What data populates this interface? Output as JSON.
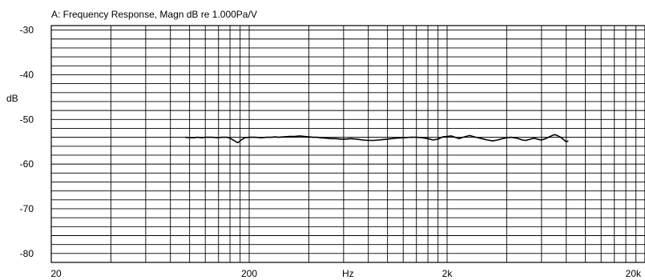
{
  "chart_data": {
    "type": "line",
    "title": "A: Frequency Response, Magn dB re 1.000Pa/V",
    "xlabel": "Hz",
    "ylabel": "dB",
    "x_scale": "log",
    "xlim": [
      20,
      20000
    ],
    "ylim": [
      -82,
      -29
    ],
    "x_tick_labels": [
      {
        "value": 20,
        "label": "20"
      },
      {
        "value": 200,
        "label": "200"
      },
      {
        "value": 2000,
        "label": "2k"
      },
      {
        "value": 20000,
        "label": "20k"
      }
    ],
    "y_tick_labels": [
      {
        "value": -30,
        "label": "-30"
      },
      {
        "value": -40,
        "label": "-40"
      },
      {
        "value": -50,
        "label": "-50"
      },
      {
        "value": -60,
        "label": "-60"
      },
      {
        "value": -70,
        "label": "-70"
      },
      {
        "value": -80,
        "label": "-80"
      }
    ],
    "grid": true,
    "line_color": "#000000",
    "series": [
      {
        "x": [
          95,
          100,
          105,
          110,
          115,
          120,
          130,
          140,
          145,
          150,
          155,
          160,
          170,
          175,
          180,
          185,
          190,
          200,
          215,
          230,
          245,
          260,
          270,
          280,
          300,
          320,
          340,
          360,
          380,
          400,
          420,
          440,
          460,
          490,
          520,
          550,
          580,
          620,
          650,
          700,
          750,
          800,
          850,
          900,
          950,
          1000,
          1050,
          1100,
          1200,
          1300,
          1400,
          1500,
          1600,
          1700,
          1800,
          1900,
          2000,
          2100,
          2200,
          2300,
          2400,
          2500,
          2600,
          2700,
          2800,
          3000,
          3200,
          3400,
          3600,
          3800,
          4000,
          4200,
          4500,
          4800,
          5000,
          5200,
          5500,
          5800,
          6000,
          6200,
          6500,
          6800,
          7000,
          7200,
          7500,
          7800,
          8000,
          8200
        ],
        "y": [
          -54.0,
          -54.1,
          -54.1,
          -54.0,
          -54.1,
          -54.0,
          -54.0,
          -54.1,
          -54.0,
          -54.0,
          -54.0,
          -54.2,
          -54.9,
          -55.2,
          -54.8,
          -54.4,
          -54.1,
          -54.0,
          -54.0,
          -54.1,
          -54.0,
          -54.0,
          -53.9,
          -54.0,
          -53.9,
          -53.8,
          -53.8,
          -53.7,
          -53.8,
          -53.9,
          -54.0,
          -54.0,
          -54.1,
          -54.2,
          -54.3,
          -54.3,
          -54.4,
          -54.4,
          -54.3,
          -54.4,
          -54.6,
          -54.7,
          -54.7,
          -54.6,
          -54.5,
          -54.4,
          -54.3,
          -54.2,
          -54.1,
          -54.0,
          -54.0,
          -54.1,
          -54.3,
          -54.6,
          -54.4,
          -53.9,
          -53.8,
          -53.7,
          -54.0,
          -54.3,
          -54.0,
          -53.8,
          -53.6,
          -53.8,
          -54.0,
          -54.3,
          -54.6,
          -54.8,
          -54.6,
          -54.3,
          -54.1,
          -54.0,
          -54.2,
          -54.6,
          -54.7,
          -54.5,
          -54.2,
          -54.5,
          -54.6,
          -54.4,
          -54.0,
          -53.6,
          -53.4,
          -53.6,
          -54.0,
          -54.6,
          -55.0,
          -54.8
        ]
      }
    ]
  }
}
